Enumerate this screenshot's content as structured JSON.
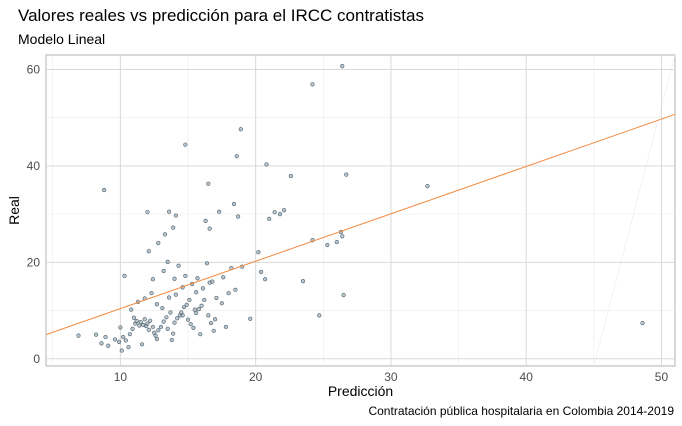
{
  "chart_data": {
    "type": "scatter",
    "title": "Valores reales vs predicción para el IRCC contratistas",
    "subtitle": "Modelo Lineal",
    "caption": "Contratación pública hospitalaria en Colombia 2014-2019",
    "xlabel": "Predicción",
    "ylabel": "Real",
    "xlim": [
      4.5,
      51
    ],
    "ylim": [
      -1.5,
      63
    ],
    "xticks": [
      10,
      20,
      30,
      40,
      50
    ],
    "yticks": [
      0,
      20,
      40,
      60
    ],
    "grid": true,
    "point_color": "#7f97a6",
    "line_color": "#f28e45",
    "reference_line": {
      "x": [
        4.5,
        51
      ],
      "y": [
        5.0,
        50.7
      ]
    },
    "points": [
      [
        6.9,
        4.8
      ],
      [
        8.2,
        5.0
      ],
      [
        8.6,
        3.2
      ],
      [
        8.9,
        4.5
      ],
      [
        9.1,
        2.7
      ],
      [
        9.6,
        4.0
      ],
      [
        9.9,
        3.5
      ],
      [
        10.0,
        6.5
      ],
      [
        10.1,
        1.7
      ],
      [
        10.2,
        4.5
      ],
      [
        10.4,
        3.8
      ],
      [
        10.7,
        5.1
      ],
      [
        10.9,
        6.2
      ],
      [
        11.0,
        8.5
      ],
      [
        11.1,
        7.3
      ],
      [
        11.2,
        7.8
      ],
      [
        11.4,
        6.9
      ],
      [
        11.5,
        7.6
      ],
      [
        11.7,
        7.0
      ],
      [
        11.8,
        8.2
      ],
      [
        11.9,
        6.8
      ],
      [
        12.0,
        7.3
      ],
      [
        12.1,
        6.0
      ],
      [
        12.2,
        7.9
      ],
      [
        12.4,
        6.6
      ],
      [
        12.5,
        5.4
      ],
      [
        12.7,
        4.1
      ],
      [
        12.8,
        5.9
      ],
      [
        13.0,
        6.6
      ],
      [
        13.2,
        7.7
      ],
      [
        13.4,
        8.6
      ],
      [
        13.5,
        6.2
      ],
      [
        13.7,
        9.6
      ],
      [
        13.9,
        5.2
      ],
      [
        14.0,
        7.5
      ],
      [
        14.2,
        8.4
      ],
      [
        14.4,
        9.0
      ],
      [
        14.5,
        9.6
      ],
      [
        14.7,
        10.7
      ],
      [
        14.9,
        11.2
      ],
      [
        15.0,
        8.1
      ],
      [
        15.2,
        7.2
      ],
      [
        15.4,
        6.4
      ],
      [
        15.6,
        9.5
      ],
      [
        15.8,
        10.3
      ],
      [
        16.0,
        11.0
      ],
      [
        16.2,
        12.2
      ],
      [
        16.5,
        9.0
      ],
      [
        16.7,
        7.4
      ],
      [
        17.0,
        8.2
      ],
      [
        10.8,
        10.2
      ],
      [
        11.3,
        11.8
      ],
      [
        11.8,
        12.5
      ],
      [
        12.3,
        13.6
      ],
      [
        12.7,
        11.3
      ],
      [
        13.1,
        10.5
      ],
      [
        13.6,
        12.7
      ],
      [
        14.1,
        13.3
      ],
      [
        14.6,
        14.8
      ],
      [
        15.1,
        12.2
      ],
      [
        15.6,
        13.8
      ],
      [
        16.1,
        14.6
      ],
      [
        16.6,
        15.8
      ],
      [
        17.1,
        12.6
      ],
      [
        17.5,
        11.5
      ],
      [
        18.0,
        13.6
      ],
      [
        18.5,
        14.3
      ],
      [
        12.4,
        16.5
      ],
      [
        13.2,
        18.2
      ],
      [
        13.5,
        20.1
      ],
      [
        14.0,
        16.6
      ],
      [
        14.3,
        19.3
      ],
      [
        14.8,
        17.2
      ],
      [
        15.3,
        15.5
      ],
      [
        15.7,
        16.7
      ],
      [
        16.4,
        19.8
      ],
      [
        16.8,
        16.0
      ],
      [
        17.6,
        16.9
      ],
      [
        18.2,
        18.8
      ],
      [
        19.0,
        19.1
      ],
      [
        10.3,
        17.2
      ],
      [
        12.1,
        22.3
      ],
      [
        12.8,
        24.0
      ],
      [
        13.3,
        25.8
      ],
      [
        13.9,
        27.2
      ],
      [
        14.1,
        29.7
      ],
      [
        13.6,
        30.5
      ],
      [
        12.0,
        30.4
      ],
      [
        16.3,
        28.6
      ],
      [
        16.6,
        27.0
      ],
      [
        17.3,
        30.5
      ],
      [
        18.4,
        32.1
      ],
      [
        18.7,
        29.5
      ],
      [
        16.5,
        36.3
      ],
      [
        18.6,
        42.0
      ],
      [
        18.9,
        47.6
      ],
      [
        14.8,
        44.4
      ],
      [
        8.8,
        35.0
      ],
      [
        20.2,
        22.1
      ],
      [
        20.7,
        16.5
      ],
      [
        20.4,
        18.0
      ],
      [
        21.0,
        29.0
      ],
      [
        21.4,
        30.4
      ],
      [
        21.8,
        30.0
      ],
      [
        22.1,
        30.8
      ],
      [
        22.6,
        37.9
      ],
      [
        20.8,
        40.3
      ],
      [
        23.5,
        16.1
      ],
      [
        24.2,
        24.6
      ],
      [
        24.7,
        9.0
      ],
      [
        25.3,
        23.6
      ],
      [
        26.0,
        24.2
      ],
      [
        26.3,
        26.3
      ],
      [
        26.4,
        25.4
      ],
      [
        26.5,
        13.2
      ],
      [
        26.7,
        38.2
      ],
      [
        24.2,
        56.9
      ],
      [
        26.4,
        60.7
      ],
      [
        32.7,
        35.8
      ],
      [
        48.6,
        7.4
      ],
      [
        16.9,
        5.8
      ],
      [
        19.6,
        8.3
      ],
      [
        17.8,
        6.6
      ],
      [
        15.9,
        5.1
      ],
      [
        14.6,
        9.0
      ],
      [
        15.5,
        10.2
      ],
      [
        13.8,
        3.9
      ],
      [
        12.6,
        4.8
      ],
      [
        11.6,
        3.0
      ],
      [
        10.6,
        2.4
      ]
    ]
  }
}
